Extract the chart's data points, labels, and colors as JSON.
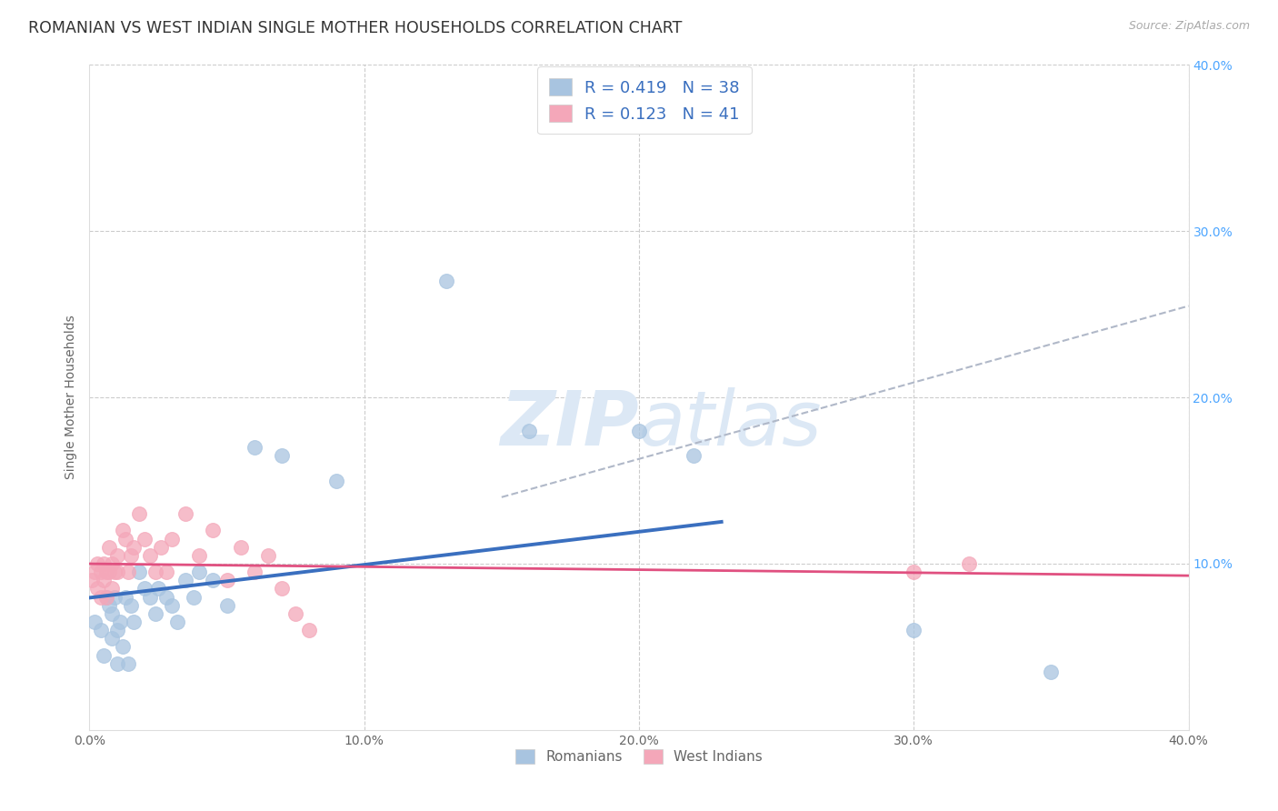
{
  "title": "ROMANIAN VS WEST INDIAN SINGLE MOTHER HOUSEHOLDS CORRELATION CHART",
  "source": "Source: ZipAtlas.com",
  "ylabel": "Single Mother Households",
  "xlim": [
    0.0,
    0.4
  ],
  "ylim": [
    0.0,
    0.4
  ],
  "xticks": [
    0.0,
    0.1,
    0.2,
    0.3,
    0.4
  ],
  "yticks": [
    0.0,
    0.1,
    0.2,
    0.3,
    0.4
  ],
  "xticklabels": [
    "0.0%",
    "10.0%",
    "20.0%",
    "30.0%",
    "40.0%"
  ],
  "right_yticklabels": [
    "10.0%",
    "20.0%",
    "30.0%",
    "40.0%"
  ],
  "right_yticks": [
    0.1,
    0.2,
    0.3,
    0.4
  ],
  "romanians_R": "0.419",
  "romanians_N": "38",
  "west_indians_R": "0.123",
  "west_indians_N": "41",
  "romanian_color": "#a8c4e0",
  "west_indian_color": "#f4a7b9",
  "romanian_line_color": "#3a6fbf",
  "west_indian_line_color": "#e05080",
  "trend_line_color": "#b0b8c8",
  "background_color": "#ffffff",
  "grid_color": "#cccccc",
  "title_color": "#333333",
  "label_color": "#666666",
  "legend_text_color": "#3a6fbf",
  "watermark_color": "#dce8f5",
  "romanians_x": [
    0.002,
    0.004,
    0.005,
    0.006,
    0.007,
    0.008,
    0.008,
    0.009,
    0.01,
    0.01,
    0.011,
    0.012,
    0.013,
    0.014,
    0.015,
    0.016,
    0.018,
    0.02,
    0.022,
    0.024,
    0.025,
    0.028,
    0.03,
    0.032,
    0.035,
    0.038,
    0.04,
    0.045,
    0.05,
    0.06,
    0.07,
    0.09,
    0.13,
    0.16,
    0.2,
    0.22,
    0.3,
    0.35
  ],
  "romanians_y": [
    0.065,
    0.06,
    0.045,
    0.08,
    0.075,
    0.055,
    0.07,
    0.08,
    0.06,
    0.04,
    0.065,
    0.05,
    0.08,
    0.04,
    0.075,
    0.065,
    0.095,
    0.085,
    0.08,
    0.07,
    0.085,
    0.08,
    0.075,
    0.065,
    0.09,
    0.08,
    0.095,
    0.09,
    0.075,
    0.17,
    0.165,
    0.15,
    0.27,
    0.18,
    0.18,
    0.165,
    0.06,
    0.035
  ],
  "west_indians_x": [
    0.001,
    0.002,
    0.003,
    0.003,
    0.004,
    0.004,
    0.005,
    0.005,
    0.006,
    0.006,
    0.007,
    0.007,
    0.008,
    0.008,
    0.009,
    0.01,
    0.01,
    0.012,
    0.013,
    0.014,
    0.015,
    0.016,
    0.018,
    0.02,
    0.022,
    0.024,
    0.026,
    0.028,
    0.03,
    0.035,
    0.04,
    0.045,
    0.05,
    0.055,
    0.06,
    0.065,
    0.07,
    0.075,
    0.08,
    0.3,
    0.32
  ],
  "west_indians_y": [
    0.09,
    0.095,
    0.1,
    0.085,
    0.095,
    0.08,
    0.1,
    0.09,
    0.095,
    0.08,
    0.11,
    0.095,
    0.1,
    0.085,
    0.095,
    0.105,
    0.095,
    0.12,
    0.115,
    0.095,
    0.105,
    0.11,
    0.13,
    0.115,
    0.105,
    0.095,
    0.11,
    0.095,
    0.115,
    0.13,
    0.105,
    0.12,
    0.09,
    0.11,
    0.095,
    0.105,
    0.085,
    0.07,
    0.06,
    0.095,
    0.1
  ],
  "title_fontsize": 12.5,
  "axis_label_fontsize": 10,
  "tick_fontsize": 10,
  "legend_fontsize": 13
}
